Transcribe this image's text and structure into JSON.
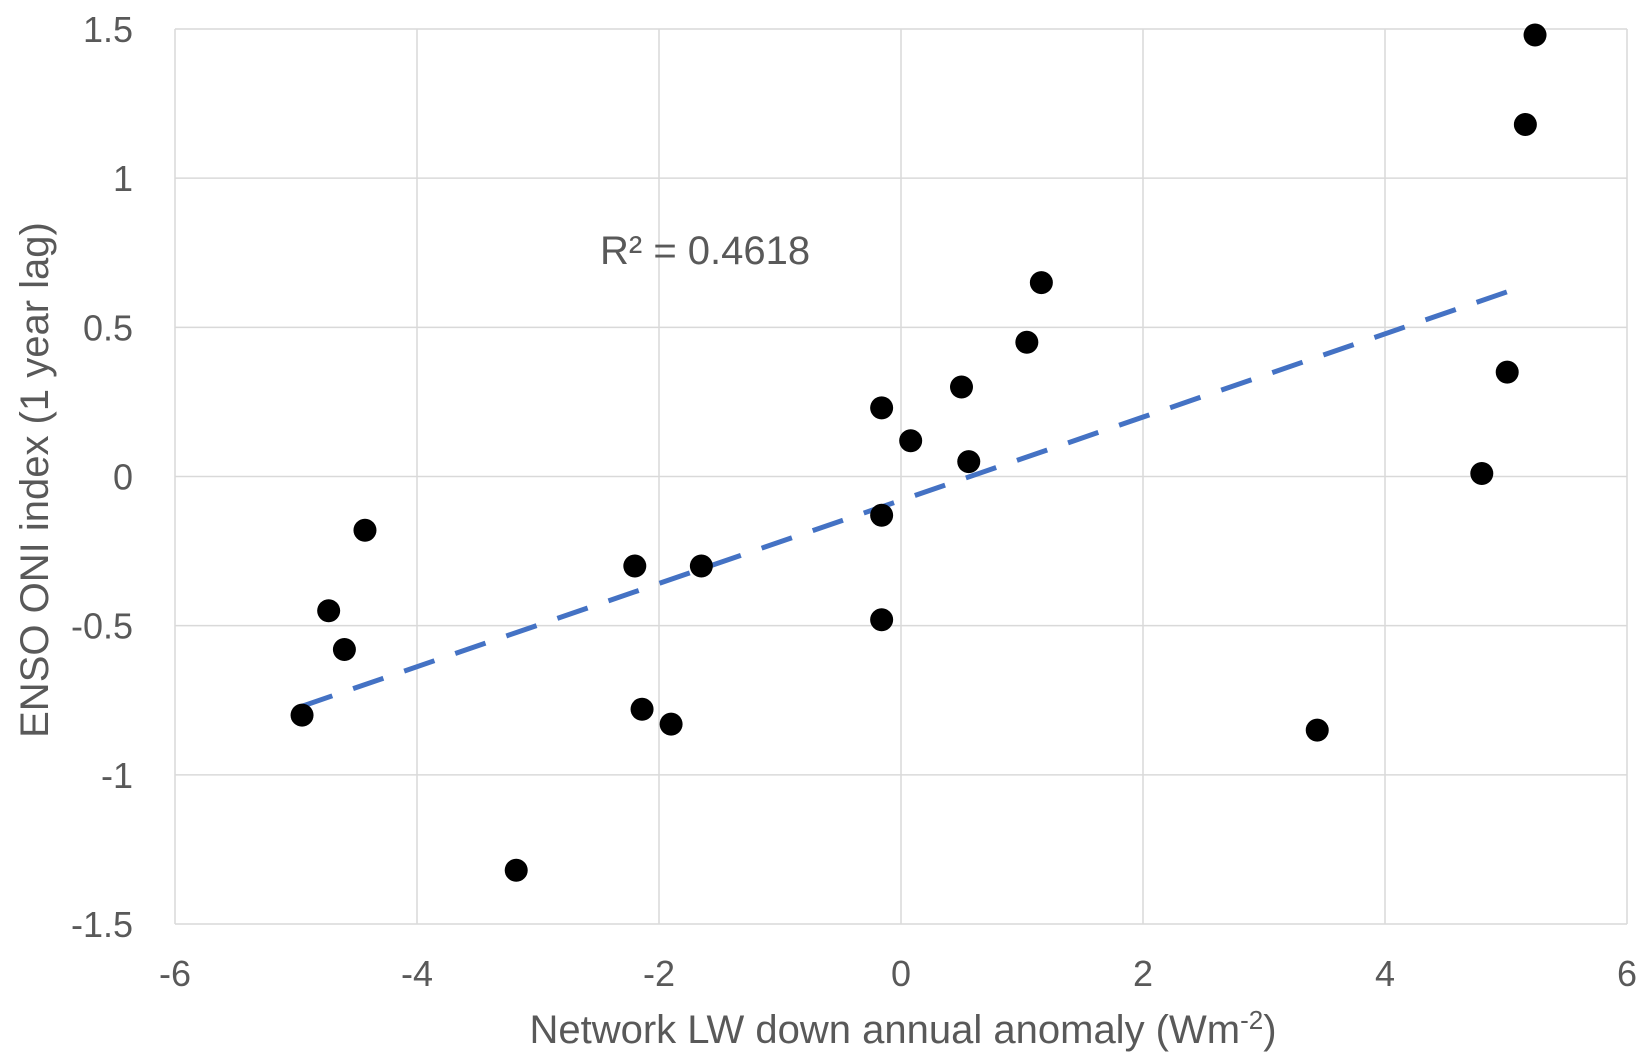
{
  "chart_data": {
    "type": "scatter",
    "title": "",
    "xlabel": "Network LW down annual anomaly (Wm",
    "xlabel_sup": "-2",
    "xlabel_end": ")",
    "ylabel": "ENSO ONI index (1 year lag)",
    "xlim": [
      -6,
      6
    ],
    "ylim": [
      -1.5,
      1.5
    ],
    "x_ticks": [
      -6,
      -4,
      -2,
      0,
      2,
      4,
      6
    ],
    "y_ticks": [
      -1.5,
      -1,
      -0.5,
      0,
      0.5,
      1,
      1.5
    ],
    "x_tick_labels": [
      "-6",
      "-4",
      "-2",
      "0",
      "2",
      "4",
      "6"
    ],
    "y_tick_labels": [
      "-1.5",
      "-1",
      "-0.5",
      "0",
      "0.5",
      "1",
      "1.5"
    ],
    "grid": true,
    "series": [
      {
        "marker_color": "#000000",
        "points": [
          {
            "x": -4.95,
            "y": -0.8
          },
          {
            "x": -4.73,
            "y": -0.45
          },
          {
            "x": -4.6,
            "y": -0.58
          },
          {
            "x": -4.43,
            "y": -0.18
          },
          {
            "x": -3.18,
            "y": -1.32
          },
          {
            "x": -2.2,
            "y": -0.3
          },
          {
            "x": -2.14,
            "y": -0.78
          },
          {
            "x": -1.9,
            "y": -0.83
          },
          {
            "x": -1.65,
            "y": -0.3
          },
          {
            "x": -0.16,
            "y": 0.23
          },
          {
            "x": -0.16,
            "y": -0.13
          },
          {
            "x": -0.16,
            "y": -0.48
          },
          {
            "x": 0.08,
            "y": 0.12
          },
          {
            "x": 0.5,
            "y": 0.3
          },
          {
            "x": 0.56,
            "y": 0.05
          },
          {
            "x": 1.04,
            "y": 0.45
          },
          {
            "x": 1.16,
            "y": 0.65
          },
          {
            "x": 3.44,
            "y": -0.85
          },
          {
            "x": 4.8,
            "y": 0.01
          },
          {
            "x": 5.01,
            "y": 0.35
          },
          {
            "x": 5.16,
            "y": 1.18
          },
          {
            "x": 5.24,
            "y": 1.48
          }
        ]
      }
    ],
    "trendline": {
      "type": "linear",
      "style": "dashed",
      "color": "#4472C4",
      "x_start": -4.95,
      "y_start": -0.77,
      "x_end": 5.16,
      "y_end": 0.64,
      "label": "R² = 0.4618"
    },
    "colors": {
      "grid": "#d9d9d9",
      "text": "#595959",
      "marker": "#000000",
      "trend": "#4472C4"
    }
  }
}
